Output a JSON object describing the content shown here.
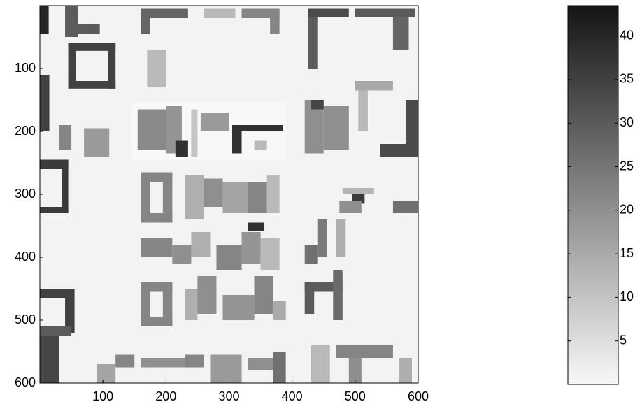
{
  "chart_data": {
    "type": "heatmap",
    "xlim": [
      0,
      600
    ],
    "ylim": [
      0,
      600
    ],
    "y_inverted": true,
    "xticks": [
      100,
      200,
      300,
      400,
      500,
      600
    ],
    "yticks": [
      100,
      200,
      300,
      400,
      500,
      600
    ],
    "clim": [
      0,
      43.5
    ],
    "cticks": [
      5,
      10,
      15,
      20,
      25,
      30,
      35,
      40
    ],
    "colormap": [
      "#f8f8f8",
      "#141414"
    ],
    "cells": [
      [
        0,
        0,
        600,
        600,
        1
      ],
      [
        0,
        0,
        14,
        45,
        40
      ],
      [
        45,
        60,
        120,
        72,
        35
      ],
      [
        45,
        60,
        57,
        130,
        35
      ],
      [
        45,
        120,
        120,
        132,
        35
      ],
      [
        108,
        60,
        120,
        132,
        35
      ],
      [
        0,
        110,
        15,
        200,
        35
      ],
      [
        40,
        0,
        60,
        50,
        30
      ],
      [
        60,
        30,
        95,
        45,
        30
      ],
      [
        160,
        5,
        235,
        20,
        28
      ],
      [
        160,
        20,
        175,
        45,
        28
      ],
      [
        260,
        5,
        310,
        20,
        12
      ],
      [
        320,
        5,
        380,
        20,
        22
      ],
      [
        365,
        5,
        380,
        45,
        22
      ],
      [
        425,
        5,
        490,
        18,
        33
      ],
      [
        425,
        18,
        440,
        100,
        30
      ],
      [
        500,
        5,
        595,
        18,
        30
      ],
      [
        560,
        18,
        585,
        70,
        28
      ],
      [
        170,
        70,
        200,
        130,
        12
      ],
      [
        145,
        155,
        390,
        245,
        0
      ],
      [
        155,
        165,
        200,
        230,
        21
      ],
      [
        200,
        160,
        225,
        235,
        19
      ],
      [
        215,
        215,
        235,
        240,
        38
      ],
      [
        240,
        165,
        250,
        240,
        10
      ],
      [
        255,
        170,
        300,
        200,
        18
      ],
      [
        305,
        190,
        385,
        200,
        38
      ],
      [
        305,
        200,
        320,
        235,
        38
      ],
      [
        340,
        215,
        360,
        230,
        12
      ],
      [
        420,
        150,
        450,
        235,
        20
      ],
      [
        450,
        160,
        490,
        230,
        20
      ],
      [
        430,
        150,
        450,
        165,
        34
      ],
      [
        580,
        150,
        600,
        230,
        33
      ],
      [
        540,
        220,
        600,
        240,
        33
      ],
      [
        500,
        120,
        560,
        135,
        15
      ],
      [
        505,
        135,
        520,
        200,
        12
      ],
      [
        70,
        195,
        110,
        240,
        18
      ],
      [
        30,
        190,
        50,
        230,
        22
      ],
      [
        160,
        265,
        210,
        280,
        22
      ],
      [
        160,
        265,
        175,
        345,
        22
      ],
      [
        160,
        330,
        210,
        345,
        22
      ],
      [
        195,
        265,
        210,
        345,
        22
      ],
      [
        230,
        270,
        260,
        340,
        14
      ],
      [
        260,
        275,
        290,
        320,
        20
      ],
      [
        290,
        280,
        330,
        330,
        16
      ],
      [
        330,
        280,
        360,
        330,
        22
      ],
      [
        360,
        270,
        380,
        330,
        12
      ],
      [
        160,
        370,
        210,
        400,
        22
      ],
      [
        210,
        380,
        240,
        410,
        20
      ],
      [
        240,
        360,
        270,
        400,
        14
      ],
      [
        280,
        380,
        320,
        420,
        22
      ],
      [
        320,
        360,
        350,
        410,
        19
      ],
      [
        330,
        345,
        355,
        358,
        38
      ],
      [
        350,
        370,
        380,
        420,
        12
      ],
      [
        160,
        440,
        175,
        510,
        22
      ],
      [
        160,
        440,
        210,
        455,
        22
      ],
      [
        160,
        495,
        210,
        510,
        22
      ],
      [
        195,
        440,
        210,
        510,
        22
      ],
      [
        230,
        450,
        250,
        500,
        14
      ],
      [
        250,
        430,
        280,
        490,
        20
      ],
      [
        290,
        460,
        340,
        500,
        19
      ],
      [
        340,
        430,
        370,
        490,
        22
      ],
      [
        370,
        470,
        390,
        500,
        15
      ],
      [
        420,
        440,
        480,
        455,
        30
      ],
      [
        420,
        440,
        435,
        490,
        30
      ],
      [
        465,
        420,
        480,
        500,
        27
      ],
      [
        420,
        380,
        440,
        410,
        26
      ],
      [
        440,
        340,
        455,
        400,
        24
      ],
      [
        470,
        340,
        485,
        400,
        14
      ],
      [
        480,
        290,
        530,
        300,
        13
      ],
      [
        495,
        300,
        515,
        315,
        36
      ],
      [
        475,
        310,
        510,
        330,
        20
      ],
      [
        560,
        310,
        600,
        330,
        26
      ],
      [
        0,
        450,
        50,
        465,
        35
      ],
      [
        40,
        450,
        55,
        520,
        35
      ],
      [
        0,
        510,
        50,
        525,
        30
      ],
      [
        0,
        525,
        30,
        600,
        34
      ],
      [
        0,
        245,
        45,
        260,
        36
      ],
      [
        35,
        245,
        45,
        330,
        36
      ],
      [
        0,
        320,
        45,
        330,
        36
      ],
      [
        90,
        570,
        120,
        600,
        16
      ],
      [
        120,
        555,
        150,
        575,
        22
      ],
      [
        160,
        560,
        240,
        575,
        20
      ],
      [
        230,
        555,
        260,
        575,
        22
      ],
      [
        270,
        555,
        320,
        600,
        18
      ],
      [
        330,
        560,
        370,
        580,
        20
      ],
      [
        370,
        550,
        390,
        600,
        26
      ],
      [
        430,
        540,
        460,
        600,
        12
      ],
      [
        470,
        540,
        560,
        560,
        22
      ],
      [
        490,
        560,
        510,
        600,
        20
      ],
      [
        570,
        560,
        590,
        600,
        14
      ]
    ]
  }
}
